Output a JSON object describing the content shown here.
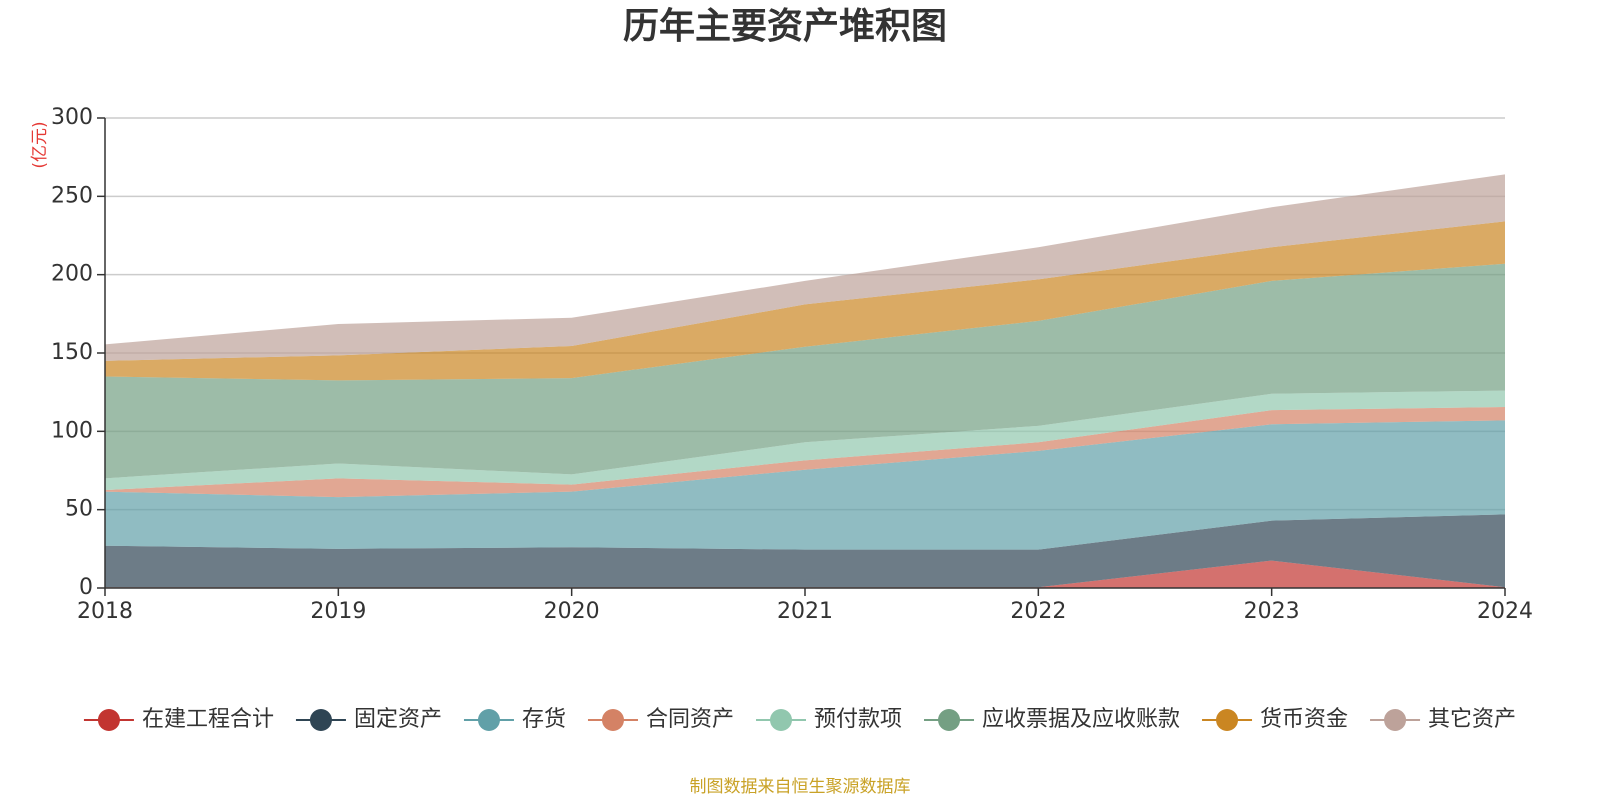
{
  "chart_data": {
    "type": "area",
    "stacked": true,
    "title": "历年主要资产堆积图",
    "unit": "(亿元)",
    "x": [
      "2018",
      "2019",
      "2020",
      "2021",
      "2022",
      "2023",
      "2024"
    ],
    "ylim": [
      0,
      300
    ],
    "yticks": [
      0,
      50,
      100,
      150,
      200,
      250,
      300
    ],
    "grid": true,
    "legend_position": "bottom",
    "series": [
      {
        "name": "在建工程合计",
        "color": "#c23531",
        "values": [
          0.5,
          0.5,
          0.5,
          0.5,
          0.5,
          17.5,
          0.5
        ]
      },
      {
        "name": "固定资产",
        "color": "#2f4554",
        "values": [
          26.5,
          24.5,
          25.5,
          24,
          24,
          25.5,
          46.5
        ]
      },
      {
        "name": "存货",
        "color": "#61a0a8",
        "values": [
          34.5,
          33,
          35.5,
          51,
          63,
          61.5,
          60
        ]
      },
      {
        "name": "合同资产",
        "color": "#d48265",
        "values": [
          1,
          12,
          4.5,
          6,
          5.5,
          9,
          8.5
        ]
      },
      {
        "name": "预付款项",
        "color": "#91c7ae",
        "values": [
          7.5,
          9.5,
          6.5,
          11.5,
          10.5,
          10.5,
          10.5
        ]
      },
      {
        "name": "应收票据及应收账款",
        "color": "#749f83",
        "values": [
          65,
          53,
          61.5,
          61,
          67,
          72,
          81
        ]
      },
      {
        "name": "货币资金",
        "color": "#ca8622",
        "values": [
          10,
          16,
          20.5,
          27,
          26.5,
          21.5,
          27
        ]
      },
      {
        "name": "其它资产",
        "color": "#bda29a",
        "values": [
          10.5,
          20,
          18,
          15,
          20.5,
          25.5,
          30
        ]
      }
    ],
    "source": "制图数据来自恒生聚源数据库"
  }
}
